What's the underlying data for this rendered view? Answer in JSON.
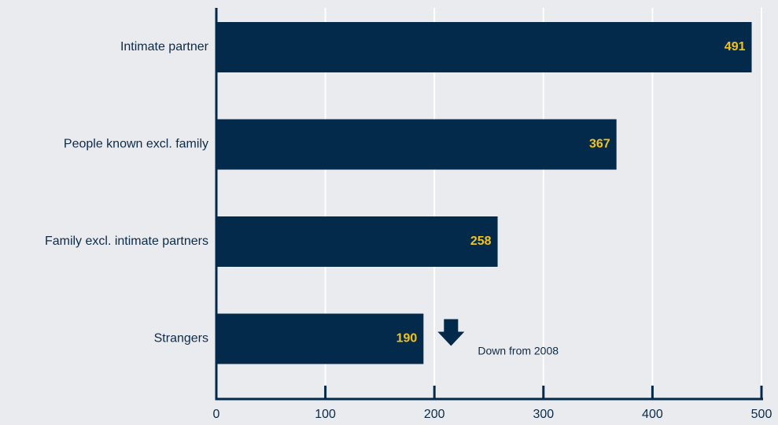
{
  "colors": {
    "background": "#e9ebee",
    "bar": "#032a4a",
    "axis": "#032a4a",
    "gridline": "#ffffff",
    "data_label": "#f2c21b",
    "text": "#0d2a48"
  },
  "chart_data": {
    "type": "bar",
    "orientation": "horizontal",
    "categories": [
      "Intimate partner",
      "People known excl. family",
      "Family excl. intimate partners",
      "Strangers"
    ],
    "values": [
      491,
      367,
      258,
      190
    ],
    "xlim": [
      0,
      500
    ],
    "xticks": [
      0,
      100,
      200,
      300,
      400,
      500
    ],
    "grid": "vertical",
    "title": "",
    "xlabel": "",
    "ylabel": "",
    "annotation": {
      "text": "Down from 2008",
      "category": "Strangers",
      "icon": "down-arrow-icon"
    }
  }
}
